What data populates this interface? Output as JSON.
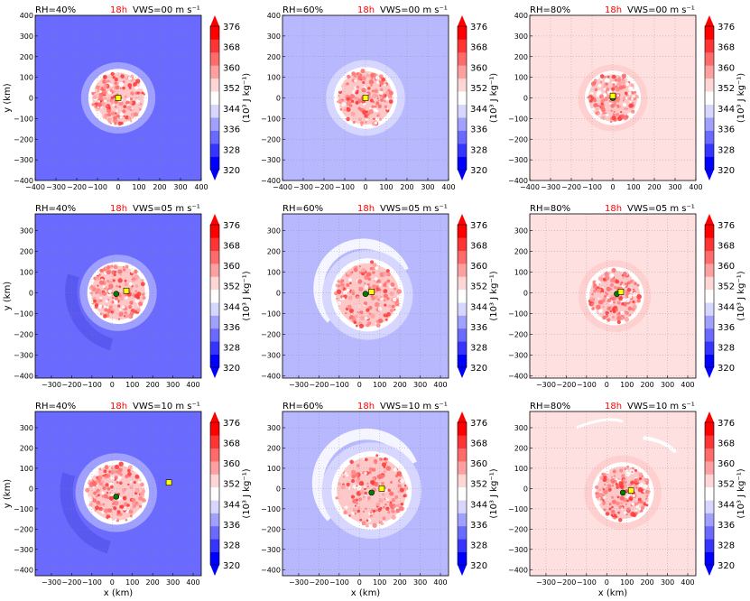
{
  "figure": {
    "colorbar_label": "(10³ J kg⁻¹)",
    "colorbar_ticks": [
      "320",
      "328",
      "336",
      "344",
      "352",
      "360",
      "368",
      "376"
    ],
    "colorbar_colors": [
      "#0000ff",
      "#3535ff",
      "#6a6aff",
      "#a0a0ff",
      "#d6d6ff",
      "#ffffff",
      "#ffd6d6",
      "#ffa0a0",
      "#ff6a6a",
      "#ff3535",
      "#ff0000"
    ],
    "ylabel": "y (km)",
    "xlabel": "x (km)",
    "time_label": "18h",
    "time_color": "#ff0000",
    "storm_center_color": "#008000",
    "marker_color": "#ffff00"
  },
  "chart_data": [
    {
      "type": "heatmap",
      "rh": "RH=40%",
      "vws": "VWS=00 m s⁻¹",
      "time": "18h",
      "xlim": [
        -400,
        400
      ],
      "ylim": [
        -400,
        400
      ],
      "xticks": [
        "−400",
        "−300",
        "−200",
        "−100",
        "0",
        "100",
        "200",
        "300",
        "400"
      ],
      "yticks": [
        "−400",
        "−300",
        "−200",
        "−100",
        "0",
        "100",
        "200",
        "300",
        "400"
      ],
      "background": "#6a6aff",
      "vortex_center": [
        0,
        0
      ],
      "vortex_radius": 160,
      "marker": [
        0,
        0
      ],
      "green": [
        0,
        0
      ]
    },
    {
      "type": "heatmap",
      "rh": "RH=60%",
      "vws": "VWS=00 m s⁻¹",
      "time": "18h",
      "xlim": [
        -400,
        400
      ],
      "ylim": [
        -400,
        400
      ],
      "xticks": [
        "−400",
        "−300",
        "−200",
        "−100",
        "0",
        "100",
        "200",
        "300",
        "400"
      ],
      "yticks": [
        "−400",
        "−300",
        "−200",
        "−100",
        "0",
        "100",
        "200",
        "300",
        "400"
      ],
      "background": "#b8b8ff",
      "vortex_center": [
        0,
        0
      ],
      "vortex_radius": 170,
      "marker": [
        0,
        0
      ],
      "green": null
    },
    {
      "type": "heatmap",
      "rh": "RH=80%",
      "vws": "VWS=00 m s⁻¹",
      "time": "18h",
      "xlim": [
        -400,
        400
      ],
      "ylim": [
        -400,
        400
      ],
      "xticks": [
        "−400",
        "−300",
        "−200",
        "−100",
        "0",
        "100",
        "200",
        "300",
        "400"
      ],
      "yticks": [
        "−400",
        "−300",
        "−200",
        "−100",
        "0",
        "100",
        "200",
        "300",
        "400"
      ],
      "background": "#ffe0e0",
      "vortex_center": [
        0,
        0
      ],
      "vortex_radius": 150,
      "marker": [
        0,
        10
      ],
      "green": [
        0,
        0
      ]
    },
    {
      "type": "heatmap",
      "rh": "RH=40%",
      "vws": "VWS=05 m s⁻¹",
      "time": "18h",
      "xlim": [
        -380,
        440
      ],
      "ylim": [
        -410,
        380
      ],
      "xticks": [
        "−300",
        "−200",
        "−100",
        "0",
        "100",
        "200",
        "300",
        "400"
      ],
      "yticks": [
        "−400",
        "−300",
        "−200",
        "−100",
        "0",
        "100",
        "200",
        "300"
      ],
      "background": "#6a6aff",
      "vortex_center": [
        30,
        0
      ],
      "vortex_radius": 170,
      "marker": [
        70,
        10
      ],
      "green": [
        20,
        -5
      ]
    },
    {
      "type": "heatmap",
      "rh": "RH=60%",
      "vws": "VWS=05 m s⁻¹",
      "time": "18h",
      "xlim": [
        -380,
        440
      ],
      "ylim": [
        -410,
        380
      ],
      "xticks": [
        "−300",
        "−200",
        "−100",
        "0",
        "100",
        "200",
        "300",
        "400"
      ],
      "yticks": [
        "−400",
        "−300",
        "−200",
        "−100",
        "0",
        "100",
        "200",
        "300"
      ],
      "background": "#b8b8ff",
      "vortex_center": [
        40,
        -10
      ],
      "vortex_radius": 200,
      "marker": [
        60,
        5
      ],
      "green": [
        30,
        -5
      ]
    },
    {
      "type": "heatmap",
      "rh": "RH=80%",
      "vws": "VWS=05 m s⁻¹",
      "time": "18h",
      "xlim": [
        -380,
        440
      ],
      "ylim": [
        -410,
        380
      ],
      "xticks": [
        "−300",
        "−200",
        "−100",
        "0",
        "100",
        "200",
        "300",
        "400"
      ],
      "yticks": [
        "−400",
        "−300",
        "−200",
        "−100",
        "0",
        "100",
        "200",
        "300"
      ],
      "background": "#ffe0e0",
      "vortex_center": [
        40,
        -15
      ],
      "vortex_radius": 160,
      "marker": [
        70,
        5
      ],
      "green": [
        50,
        -5
      ]
    },
    {
      "type": "heatmap",
      "rh": "RH=40%",
      "vws": "VWS=10 m s⁻¹",
      "time": "18h",
      "xlim": [
        -380,
        440
      ],
      "ylim": [
        -430,
        380
      ],
      "xticks": [
        "−300",
        "−200",
        "−100",
        "0",
        "100",
        "200",
        "300",
        "400"
      ],
      "yticks": [
        "−400",
        "−300",
        "−200",
        "−100",
        "0",
        "100",
        "200",
        "300"
      ],
      "background": "#6a6aff",
      "vortex_center": [
        20,
        -20
      ],
      "vortex_radius": 180,
      "marker": [
        280,
        30
      ],
      "green": [
        20,
        -40
      ]
    },
    {
      "type": "heatmap",
      "rh": "RH=60%",
      "vws": "VWS=10 m s⁻¹",
      "time": "18h",
      "xlim": [
        -380,
        440
      ],
      "ylim": [
        -430,
        380
      ],
      "xticks": [
        "−300",
        "−200",
        "−100",
        "0",
        "100",
        "200",
        "300",
        "400"
      ],
      "yticks": [
        "−400",
        "−300",
        "−200",
        "−100",
        "0",
        "100",
        "200",
        "300"
      ],
      "background": "#b8b8ff",
      "vortex_center": [
        60,
        -10
      ],
      "vortex_radius": 220,
      "marker": [
        110,
        0
      ],
      "green": [
        60,
        -20
      ]
    },
    {
      "type": "heatmap",
      "rh": "RH=80%",
      "vws": "VWS=10 m s⁻¹",
      "time": "18h",
      "xlim": [
        -380,
        440
      ],
      "ylim": [
        -430,
        380
      ],
      "xticks": [
        "−300",
        "−200",
        "−100",
        "0",
        "100",
        "200",
        "300",
        "400"
      ],
      "yticks": [
        "−400",
        "−300",
        "−200",
        "−100",
        "0",
        "100",
        "200",
        "300"
      ],
      "background": "#ffe0e0",
      "vortex_center": [
        80,
        -20
      ],
      "vortex_radius": 170,
      "marker": [
        120,
        -10
      ],
      "green": [
        80,
        -20
      ]
    }
  ]
}
